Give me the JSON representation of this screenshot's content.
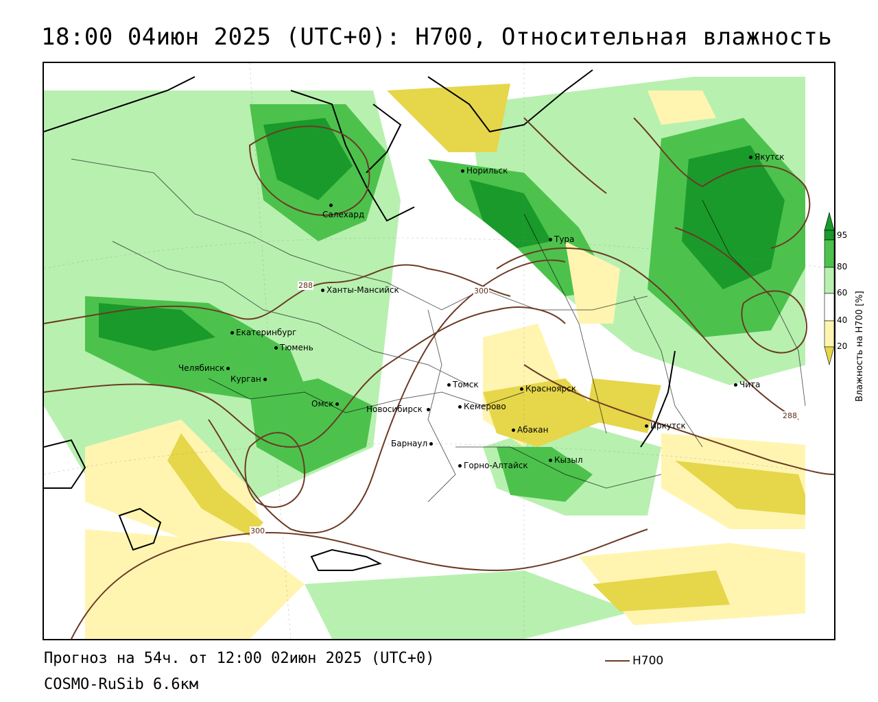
{
  "title": "18:00 04июн 2025 (UTC+0): H700, Относительная влажность",
  "footer": {
    "forecast": "Прогноз на 54ч. от 12:00 02июн 2025 (UTC+0)",
    "model": "COSMO-RuSib 6.6км",
    "line_legend": "H700"
  },
  "legend": {
    "title": "Влажность на H700 [%]",
    "ticks": [
      "95",
      "80",
      "60",
      "40",
      "20"
    ],
    "colors": {
      "dark_green": "#1a9a2a",
      "green": "#4cc24c",
      "light_green": "#b8f0b0",
      "white": "#ffffff",
      "light_yellow": "#fff5b0",
      "yellow": "#e6d64a",
      "contour": "#6b3a24"
    }
  },
  "contour_labels": [
    "288",
    "300",
    "300",
    "288"
  ],
  "cities": [
    {
      "name": "Салехард"
    },
    {
      "name": "Норильск"
    },
    {
      "name": "Якутск"
    },
    {
      "name": "Тура"
    },
    {
      "name": "Ханты-Мансийск"
    },
    {
      "name": "Екатеринбург"
    },
    {
      "name": "Тюмень"
    },
    {
      "name": "Челябинск"
    },
    {
      "name": "Курган"
    },
    {
      "name": "Омск"
    },
    {
      "name": "Новосибирск"
    },
    {
      "name": "Томск"
    },
    {
      "name": "Кемерово"
    },
    {
      "name": "Красноярск"
    },
    {
      "name": "Абакан"
    },
    {
      "name": "Барнаул"
    },
    {
      "name": "Горно-Алтайск"
    },
    {
      "name": "Кызыл"
    },
    {
      "name": "Иркутск"
    },
    {
      "name": "Чита"
    }
  ]
}
